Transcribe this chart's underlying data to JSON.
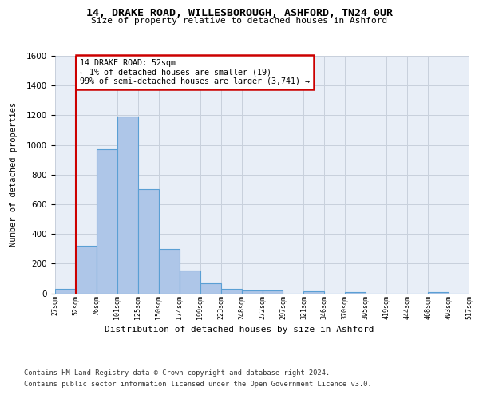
{
  "title_line1": "14, DRAKE ROAD, WILLESBOROUGH, ASHFORD, TN24 0UR",
  "title_line2": "Size of property relative to detached houses in Ashford",
  "xlabel": "Distribution of detached houses by size in Ashford",
  "ylabel": "Number of detached properties",
  "footnote1": "Contains HM Land Registry data © Crown copyright and database right 2024.",
  "footnote2": "Contains public sector information licensed under the Open Government Licence v3.0.",
  "bin_labels": [
    "27sqm",
    "52sqm",
    "76sqm",
    "101sqm",
    "125sqm",
    "150sqm",
    "174sqm",
    "199sqm",
    "223sqm",
    "248sqm",
    "272sqm",
    "297sqm",
    "321sqm",
    "346sqm",
    "370sqm",
    "395sqm",
    "419sqm",
    "444sqm",
    "468sqm",
    "493sqm",
    "517sqm"
  ],
  "bar_values": [
    30,
    320,
    970,
    1190,
    700,
    300,
    155,
    65,
    30,
    20,
    20,
    0,
    15,
    0,
    10,
    0,
    0,
    0,
    10,
    0
  ],
  "bar_color": "#aec6e8",
  "bar_edge_color": "#5a9fd4",
  "property_line_x": 1,
  "property_line_color": "#cc0000",
  "annotation_text": "14 DRAKE ROAD: 52sqm\n← 1% of detached houses are smaller (19)\n99% of semi-detached houses are larger (3,741) →",
  "annotation_box_color": "#cc0000",
  "ylim": [
    0,
    1600
  ],
  "yticks": [
    0,
    200,
    400,
    600,
    800,
    1000,
    1200,
    1400,
    1600
  ],
  "grid_color": "#c8d0dc",
  "background_color": "#e8eef7",
  "fig_background": "#ffffff"
}
